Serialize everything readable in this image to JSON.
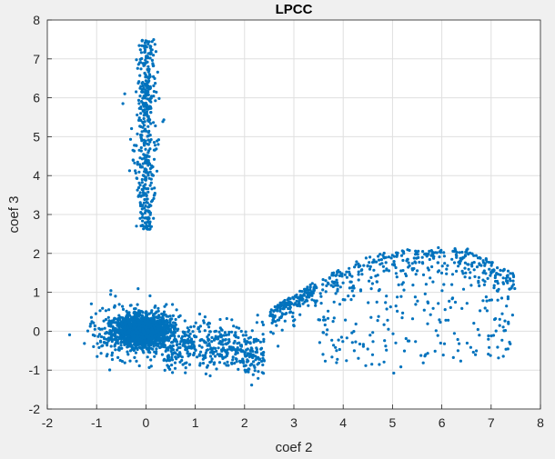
{
  "chart_data": {
    "type": "scatter",
    "title": "LPCC",
    "xlabel": "coef 2",
    "ylabel": "coef 3",
    "xlim": [
      -2,
      8
    ],
    "ylim": [
      -2,
      8
    ],
    "xticks": [
      "-2",
      "-1",
      "0",
      "1",
      "2",
      "3",
      "4",
      "5",
      "6",
      "7",
      "8"
    ],
    "yticks": [
      "-2",
      "-1",
      "0",
      "1",
      "2",
      "3",
      "4",
      "5",
      "6",
      "7",
      "8"
    ],
    "grid": true,
    "marker_color": "#0072BD",
    "clusters": [
      {
        "points": [
          [
            -0.05,
            5.9
          ],
          [
            0.05,
            6.4
          ],
          [
            -0.1,
            5.2
          ],
          [
            0.1,
            4.8
          ],
          [
            0.0,
            7.45
          ],
          [
            0.1,
            7.4
          ],
          [
            -0.15,
            5.5
          ],
          [
            0.12,
            6.9
          ],
          [
            0.0,
            2.6
          ],
          [
            0.0,
            3.0
          ]
        ],
        "desc": "vertical band near x=0 from y=2.6 to 7.5"
      },
      {
        "points": [
          [
            -0.5,
            0.2
          ],
          [
            0.5,
            -0.6
          ],
          [
            1.0,
            -0.8
          ],
          [
            -1.2,
            -0.1
          ],
          [
            0.0,
            0.9
          ],
          [
            2.3,
            -0.4
          ],
          [
            1.5,
            -0.7
          ],
          [
            2.0,
            0.3
          ]
        ],
        "desc": "dense blob near origin with tail to x~2.4"
      },
      {
        "points": [
          [
            3.0,
            0.5
          ],
          [
            4.0,
            1.8
          ],
          [
            5.0,
            2.0
          ],
          [
            6.0,
            2.3
          ],
          [
            7.0,
            1.5
          ],
          [
            7.4,
            1.3
          ],
          [
            5.0,
            -1.1
          ],
          [
            4.5,
            0.2
          ],
          [
            6.3,
            0.4
          ],
          [
            6.8,
            0.6
          ]
        ],
        "desc": "broad arc from x=2.5 to 7.5"
      }
    ]
  }
}
